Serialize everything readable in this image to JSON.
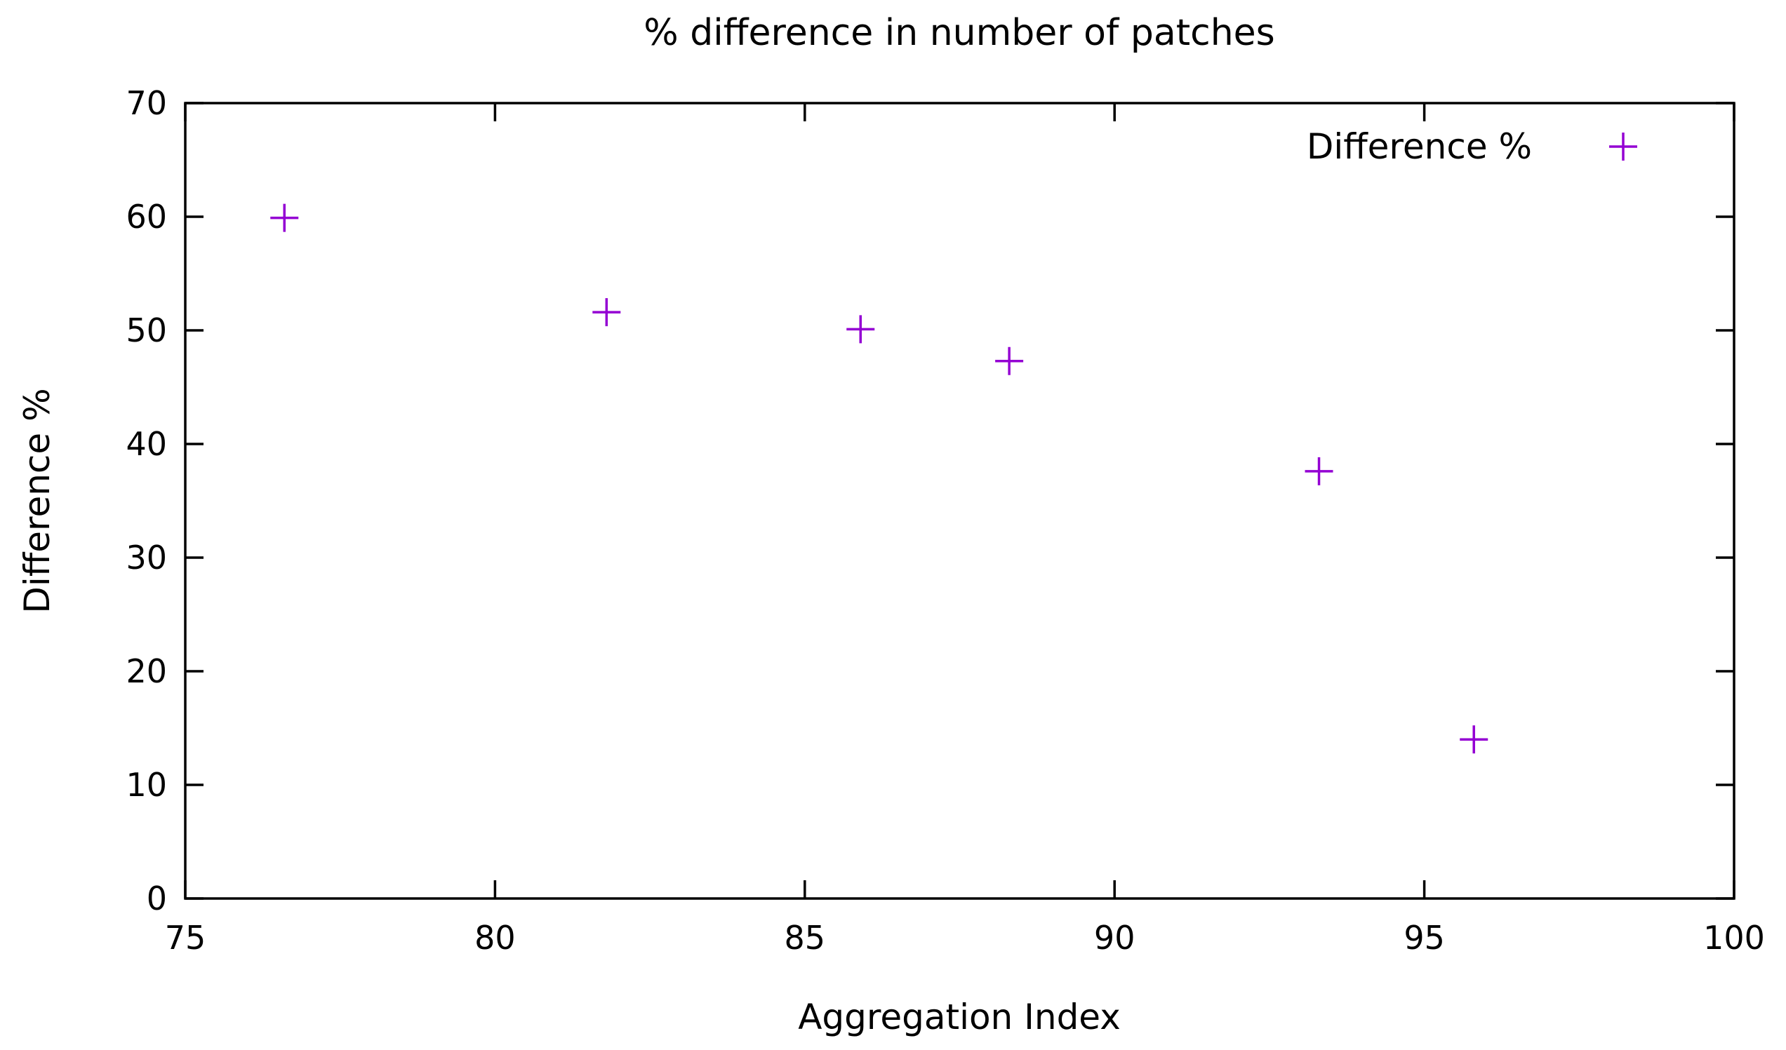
{
  "chart_data": {
    "type": "scatter",
    "title": "% difference in number of patches",
    "xlabel": "Aggregation Index",
    "ylabel": "Difference %",
    "xlim": [
      75,
      100
    ],
    "ylim": [
      0,
      70
    ],
    "xticks": [
      75,
      80,
      85,
      90,
      95,
      100
    ],
    "yticks": [
      0,
      10,
      20,
      30,
      40,
      50,
      60,
      70
    ],
    "grid": false,
    "legend_position": "top-right",
    "series": [
      {
        "name": "Difference %",
        "color": "#9400D3",
        "marker": "plus",
        "points": [
          {
            "x": 76.6,
            "y": 59.9
          },
          {
            "x": 81.8,
            "y": 51.6
          },
          {
            "x": 85.9,
            "y": 50.1
          },
          {
            "x": 88.3,
            "y": 47.3
          },
          {
            "x": 93.3,
            "y": 37.6
          },
          {
            "x": 95.8,
            "y": 14.0
          }
        ]
      }
    ]
  }
}
